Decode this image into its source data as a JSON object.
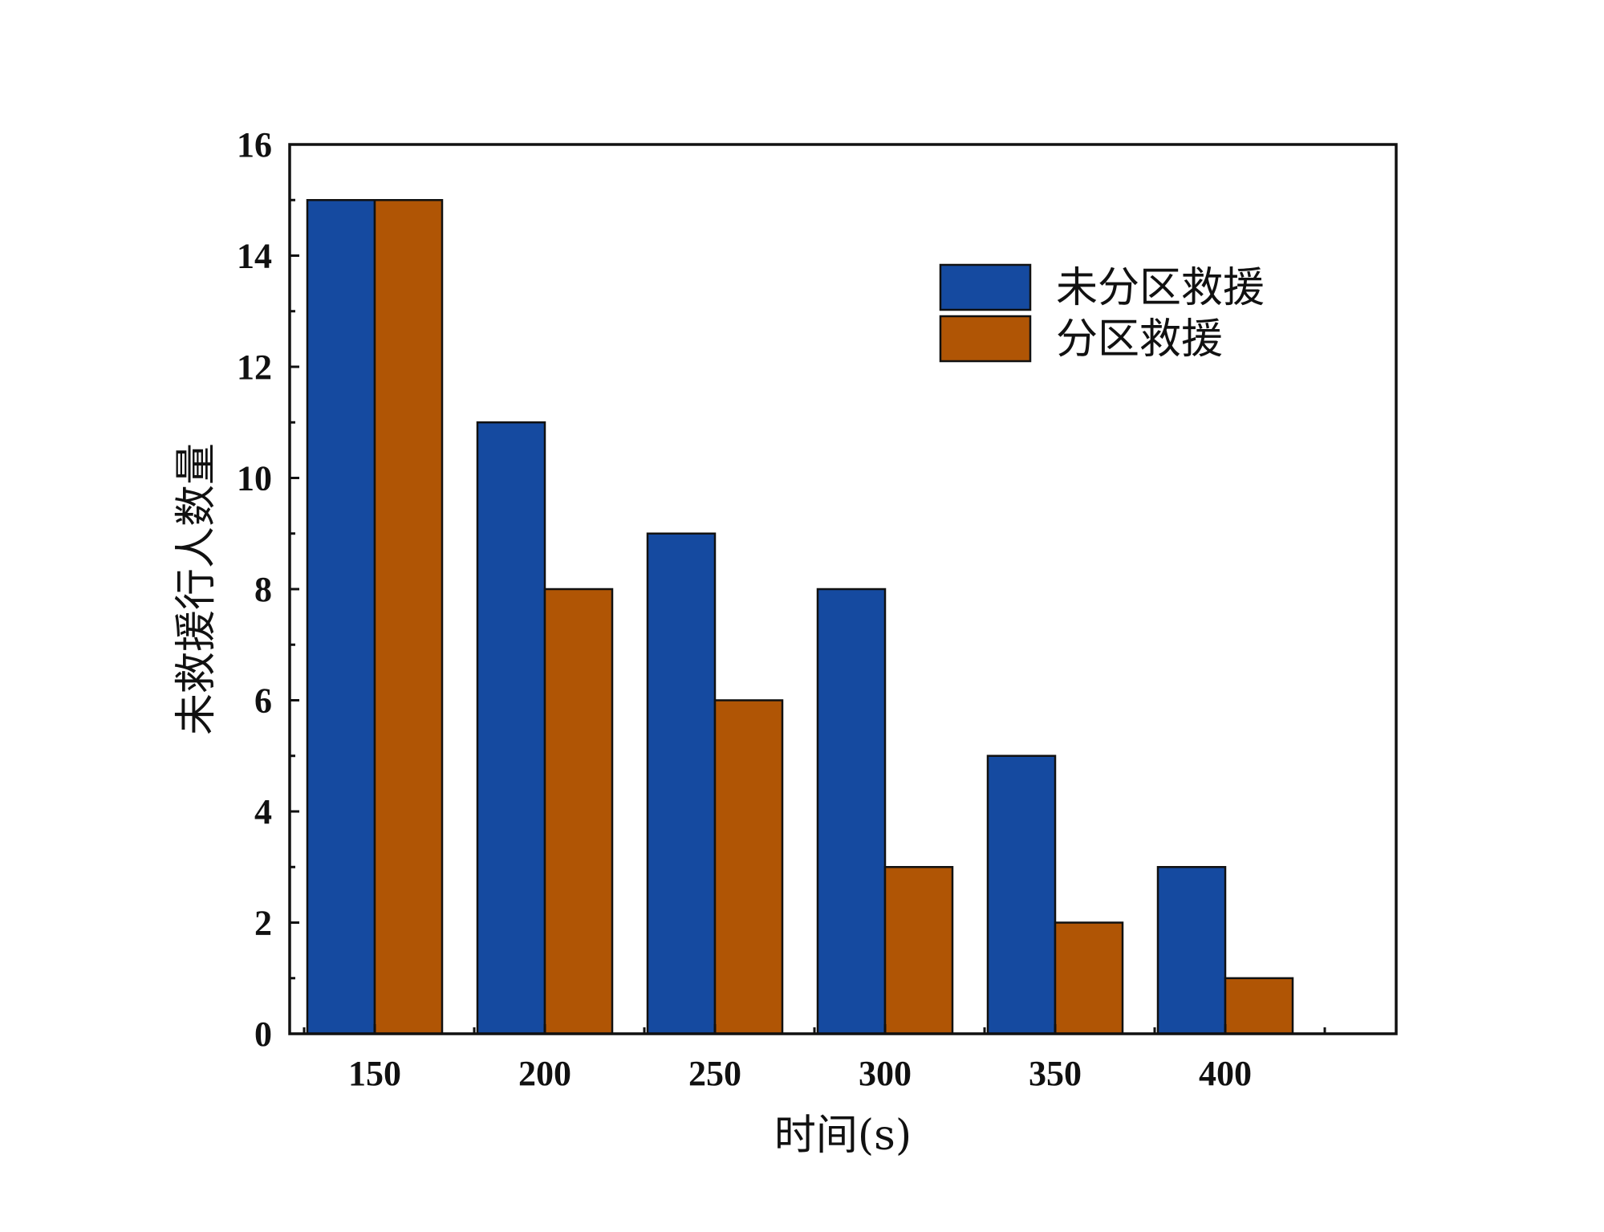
{
  "chart_data": {
    "type": "bar",
    "categories": [
      "150",
      "200",
      "250",
      "300",
      "350",
      "400"
    ],
    "series": [
      {
        "name": "未分区救援",
        "values": [
          15,
          11,
          9,
          8,
          5,
          3
        ],
        "color": "#154AA0"
      },
      {
        "name": "分区救援",
        "values": [
          15,
          8,
          6,
          3,
          2,
          1
        ],
        "color": "#B05505"
      }
    ],
    "xlabel": "时间(s)",
    "ylabel": "未救援行人数量",
    "ylim": [
      0,
      16
    ],
    "yticks": [
      "0",
      "2",
      "4",
      "6",
      "8",
      "10",
      "12",
      "14",
      "16"
    ],
    "grid": false,
    "legend_position": "top-right"
  }
}
